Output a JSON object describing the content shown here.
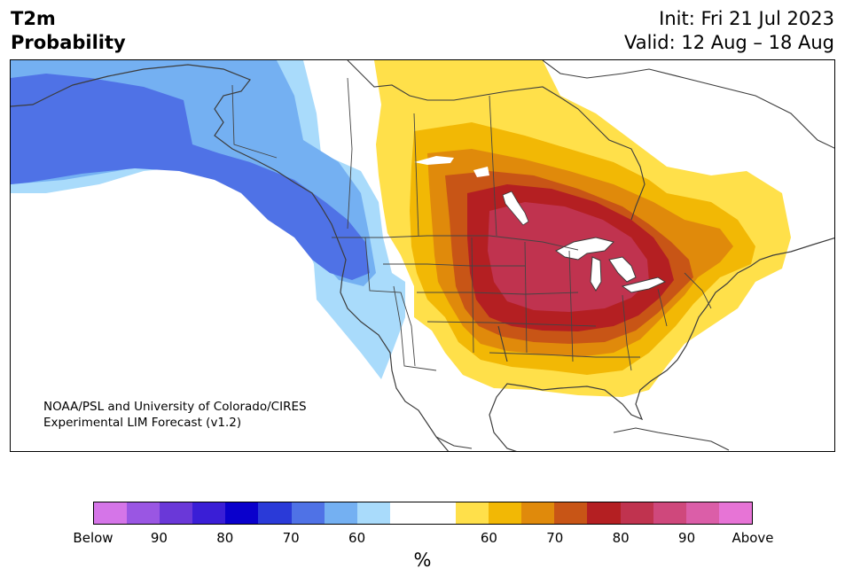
{
  "header": {
    "title_line1": "T2m",
    "title_line2": "Probability",
    "init": "Init: Fri 21 Jul 2023",
    "valid": "Valid: 12 Aug – 18 Aug"
  },
  "map": {
    "credit_line1": "NOAA/PSL and University of Colorado/CIRES",
    "credit_line2": "Experimental LIM Forecast (v1.2)"
  },
  "colorbar": {
    "unit": "%",
    "colors": [
      "#d575e8",
      "#9a56e3",
      "#6a38d8",
      "#3a1ed6",
      "#0a00cc",
      "#2a3ad8",
      "#4f72e6",
      "#74b0f2",
      "#a9dbfb",
      "#ffffff",
      "#ffffff",
      "#ffe04a",
      "#f2b805",
      "#e08a0b",
      "#c85516",
      "#b41f22",
      "#c0334f",
      "#cf487c",
      "#db5ea8",
      "#e774d6"
    ],
    "labels": [
      "Below",
      "90",
      "80",
      "70",
      "60",
      "60",
      "70",
      "80",
      "90",
      "Above"
    ]
  }
}
